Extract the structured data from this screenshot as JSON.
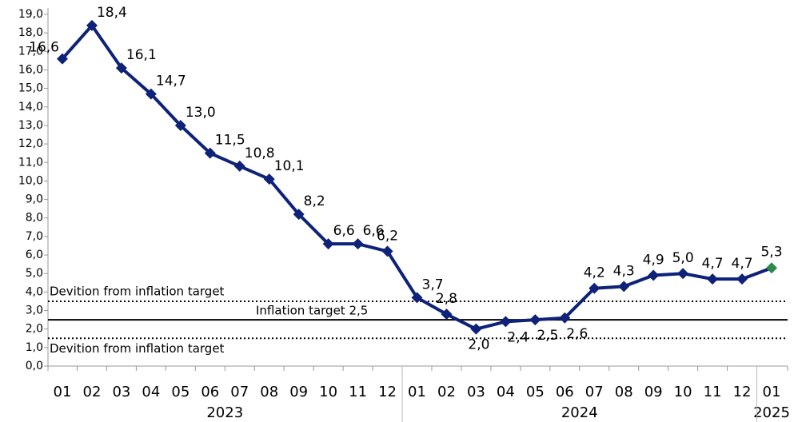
{
  "chart_data": {
    "type": "line",
    "categories": [
      "01",
      "02",
      "03",
      "04",
      "05",
      "06",
      "07",
      "08",
      "09",
      "10",
      "11",
      "12",
      "01",
      "02",
      "03",
      "04",
      "05",
      "06",
      "07",
      "08",
      "09",
      "10",
      "11",
      "12",
      "01"
    ],
    "year_groups": [
      {
        "label": "2023",
        "size": 12
      },
      {
        "label": "2024",
        "size": 12
      },
      {
        "label": "2025",
        "size": 1
      }
    ],
    "series": [
      {
        "color": "#0d2278",
        "highlight_color": "#2a8a4a",
        "values": [
          16.6,
          18.4,
          16.1,
          14.7,
          13.0,
          11.5,
          10.8,
          10.1,
          8.2,
          6.6,
          6.6,
          6.2,
          3.7,
          2.8,
          2.0,
          2.4,
          2.5,
          2.6,
          4.2,
          4.3,
          4.9,
          5.0,
          4.7,
          4.7,
          5.3
        ],
        "value_labels": [
          "16,6",
          "18,4",
          "16,1",
          "14,7",
          "13,0",
          "11,5",
          "10,8",
          "10,1",
          "8,2",
          "6,6",
          "6,6",
          "6,2",
          "3,7",
          "2,8",
          "2,0",
          "2,4",
          "2,5",
          "2,6",
          "4,2",
          "4,3",
          "4,9",
          "5,0",
          "4,7",
          "4,7",
          "5,3"
        ]
      }
    ],
    "reference_lines": [
      {
        "value": 3.5,
        "label": "Devition from inflation target",
        "style": "dotted"
      },
      {
        "value": 2.5,
        "label": "Inflation target 2,5",
        "style": "solid"
      },
      {
        "value": 1.5,
        "label": "Devition from inflation target",
        "style": "dotted"
      }
    ],
    "ylim": [
      0,
      19
    ],
    "yticks": [
      {
        "value": 0,
        "label": "0,0"
      },
      {
        "value": 1,
        "label": "1,0"
      },
      {
        "value": 2,
        "label": "2,0"
      },
      {
        "value": 3,
        "label": "3,0"
      },
      {
        "value": 4,
        "label": "4,0"
      },
      {
        "value": 5,
        "label": "5,0"
      },
      {
        "value": 6,
        "label": "6,0"
      },
      {
        "value": 7,
        "label": "7,0"
      },
      {
        "value": 8,
        "label": "8,0"
      },
      {
        "value": 9,
        "label": "9,0"
      },
      {
        "value": 10,
        "label": "10,0"
      },
      {
        "value": 11,
        "label": "11,0"
      },
      {
        "value": 12,
        "label": "12,0"
      },
      {
        "value": 13,
        "label": "13,0"
      },
      {
        "value": 14,
        "label": "14,0"
      },
      {
        "value": 15,
        "label": "15,0"
      },
      {
        "value": 16,
        "label": "16,0"
      },
      {
        "value": 17,
        "label": "17,0"
      },
      {
        "value": 18,
        "label": "18,0"
      },
      {
        "value": 19,
        "label": "19,0"
      }
    ],
    "grid": false
  }
}
